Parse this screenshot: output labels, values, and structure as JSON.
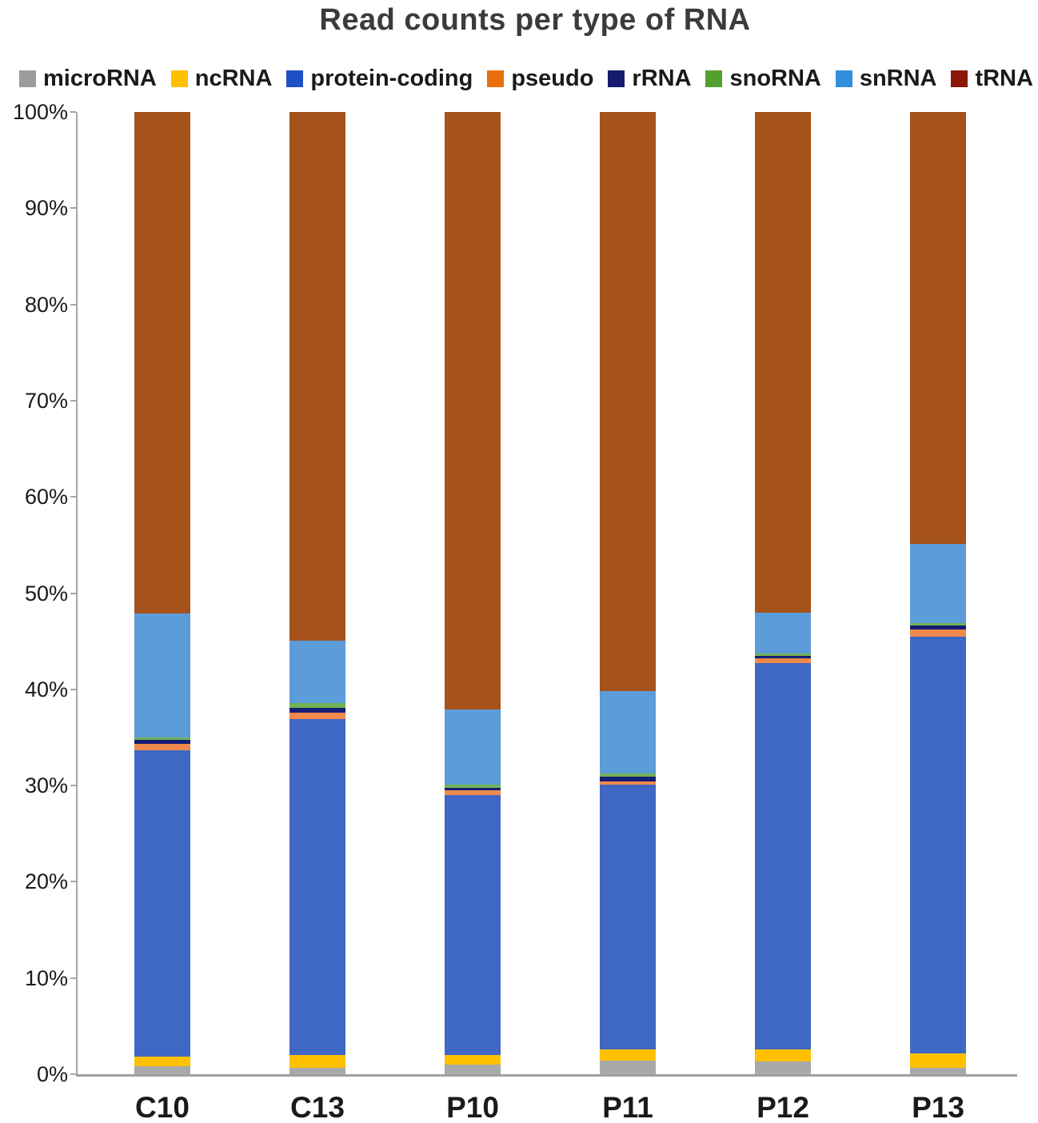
{
  "chart_data": {
    "type": "bar",
    "stacked": true,
    "orientation": "vertical",
    "title": "Read counts per type of RNA",
    "title_color": "#3B3B3B",
    "xlabel": "",
    "ylabel": "",
    "ylim": [
      0,
      100
    ],
    "grid": "off",
    "legend_position": "top",
    "axis_color": "#A6A6A6",
    "categories": [
      "C10",
      "C13",
      "P10",
      "P11",
      "P12",
      "P13"
    ],
    "y_ticks": [
      "0%",
      "10%",
      "20%",
      "30%",
      "40%",
      "50%",
      "60%",
      "70%",
      "80%",
      "90%",
      "100%"
    ],
    "series": [
      {
        "name": "microRNA",
        "legend_color": "#9C9C9C",
        "bar_color": "#A9A9A9",
        "values": [
          0.8,
          0.7,
          1.0,
          1.4,
          1.3,
          0.7
        ]
      },
      {
        "name": "ncRNA",
        "legend_color": "#FFC000",
        "bar_color": "#FFC000",
        "values": [
          1.0,
          1.3,
          1.0,
          1.2,
          1.25,
          1.45
        ]
      },
      {
        "name": "protein-coding",
        "legend_color": "#2050C8",
        "bar_color": "#3F68C5",
        "values": [
          31.9,
          34.9,
          27.0,
          27.5,
          40.15,
          43.35
        ]
      },
      {
        "name": "pseudo",
        "legend_color": "#E8700C",
        "bar_color": "#EF8A4C",
        "values": [
          0.6,
          0.7,
          0.5,
          0.35,
          0.5,
          0.75
        ]
      },
      {
        "name": "rRNA",
        "legend_color": "#141A6E",
        "bar_color": "#161D75",
        "values": [
          0.45,
          0.5,
          0.25,
          0.45,
          0.25,
          0.35
        ]
      },
      {
        "name": "snoRNA",
        "legend_color": "#54A02F",
        "bar_color": "#72B254",
        "values": [
          0.25,
          0.5,
          0.35,
          0.4,
          0.25,
          0.3
        ]
      },
      {
        "name": "snRNA",
        "legend_color": "#338EDC",
        "bar_color": "#5C9CD9",
        "values": [
          12.9,
          6.5,
          7.8,
          8.5,
          4.3,
          8.2
        ]
      },
      {
        "name": "tRNA",
        "legend_color": "#8B1507",
        "bar_color": "#A5521B",
        "values": [
          52.1,
          54.9,
          62.1,
          60.2,
          52.0,
          44.9
        ]
      }
    ]
  }
}
